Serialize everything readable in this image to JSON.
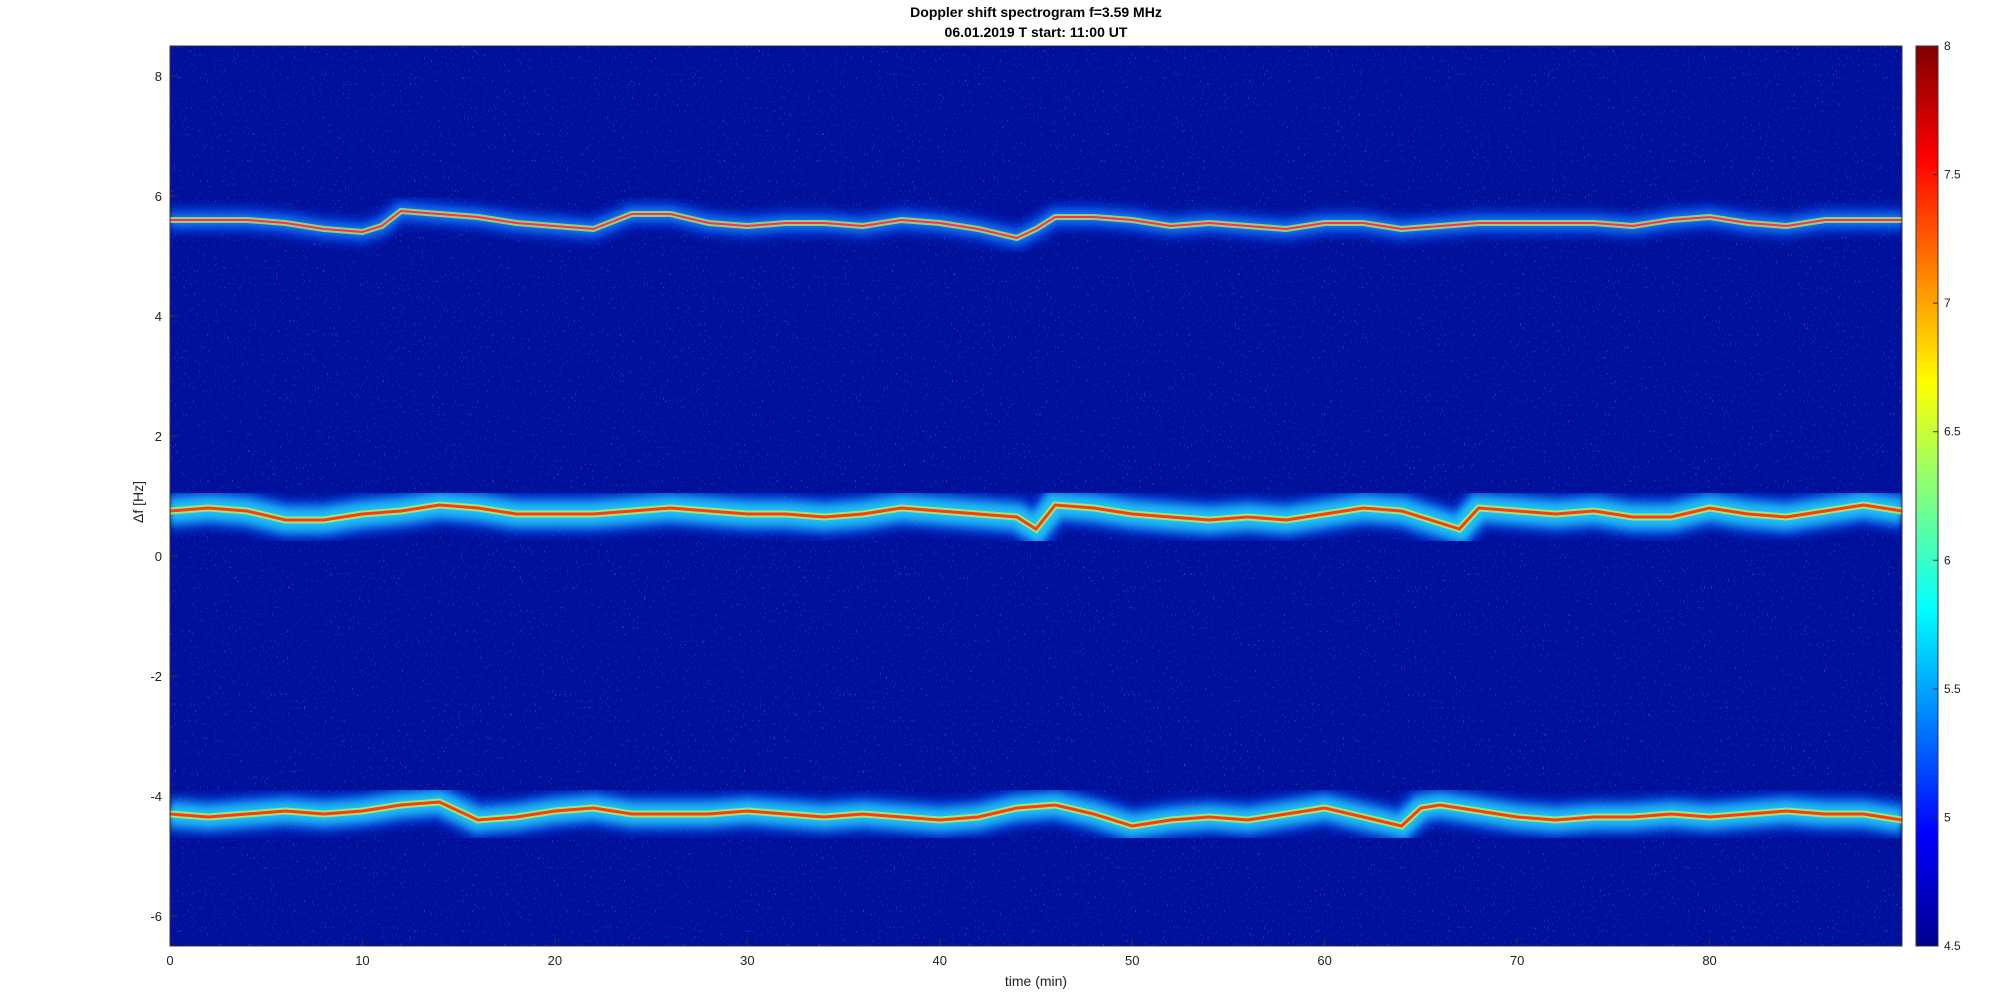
{
  "chart_data": {
    "type": "heatmap",
    "title": "Doppler shift spectrogram f=3.59 MHz",
    "subtitle": "06.01.2019   T start: 11:00 UT",
    "xlabel": "time (min)",
    "ylabel": "Δf [Hz]",
    "xlim": [
      0,
      90
    ],
    "ylim": [
      -6.5,
      8.5
    ],
    "xticks": [
      0,
      10,
      20,
      30,
      40,
      50,
      60,
      70,
      80
    ],
    "yticks": [
      -6,
      -4,
      -2,
      0,
      2,
      4,
      6,
      8
    ],
    "colormap": "jet",
    "colorbar": {
      "clim": [
        4.5,
        8
      ],
      "ticks": [
        4.5,
        5,
        5.5,
        6,
        6.5,
        7,
        7.5,
        8
      ]
    },
    "series": [
      {
        "t": [
          0,
          2,
          4,
          6,
          8,
          10,
          11,
          12,
          14,
          16,
          18,
          20,
          22,
          24,
          26,
          28,
          30,
          32,
          34,
          36,
          38,
          40,
          42,
          44,
          45,
          46,
          48,
          50,
          52,
          54,
          56,
          58,
          60,
          62,
          64,
          66,
          68,
          70,
          72,
          74,
          76,
          78,
          80,
          82,
          84,
          86,
          88,
          90
        ],
        "f": [
          5.6,
          5.6,
          5.6,
          5.55,
          5.45,
          5.4,
          5.5,
          5.75,
          5.7,
          5.65,
          5.55,
          5.5,
          5.45,
          5.7,
          5.7,
          5.55,
          5.5,
          5.55,
          5.55,
          5.5,
          5.6,
          5.55,
          5.45,
          5.3,
          5.45,
          5.65,
          5.65,
          5.6,
          5.5,
          5.55,
          5.5,
          5.45,
          5.55,
          5.55,
          5.45,
          5.5,
          5.55,
          5.55,
          5.55,
          5.55,
          5.5,
          5.6,
          5.65,
          5.55,
          5.5,
          5.6,
          5.6,
          5.6
        ]
      },
      {
        "t": [
          0,
          2,
          4,
          6,
          8,
          10,
          12,
          14,
          16,
          18,
          20,
          22,
          24,
          26,
          28,
          30,
          32,
          34,
          36,
          38,
          40,
          42,
          44,
          45,
          46,
          48,
          50,
          52,
          54,
          56,
          58,
          60,
          62,
          64,
          66,
          67,
          68,
          70,
          72,
          74,
          76,
          78,
          80,
          82,
          84,
          86,
          88,
          90
        ],
        "f": [
          0.75,
          0.8,
          0.75,
          0.6,
          0.6,
          0.7,
          0.75,
          0.85,
          0.8,
          0.7,
          0.7,
          0.7,
          0.75,
          0.8,
          0.75,
          0.7,
          0.7,
          0.65,
          0.7,
          0.8,
          0.75,
          0.7,
          0.65,
          0.45,
          0.85,
          0.8,
          0.7,
          0.65,
          0.6,
          0.65,
          0.6,
          0.7,
          0.8,
          0.75,
          0.55,
          0.45,
          0.8,
          0.75,
          0.7,
          0.75,
          0.65,
          0.65,
          0.8,
          0.7,
          0.65,
          0.75,
          0.85,
          0.75
        ]
      },
      {
        "t": [
          0,
          2,
          4,
          6,
          8,
          10,
          12,
          14,
          16,
          18,
          20,
          22,
          24,
          26,
          28,
          30,
          32,
          34,
          36,
          38,
          40,
          42,
          44,
          46,
          48,
          50,
          52,
          54,
          56,
          58,
          60,
          62,
          64,
          65,
          66,
          68,
          70,
          72,
          74,
          76,
          78,
          80,
          82,
          84,
          86,
          88,
          90
        ],
        "f": [
          -4.3,
          -4.35,
          -4.3,
          -4.25,
          -4.3,
          -4.25,
          -4.15,
          -4.1,
          -4.4,
          -4.35,
          -4.25,
          -4.2,
          -4.3,
          -4.3,
          -4.3,
          -4.25,
          -4.3,
          -4.35,
          -4.3,
          -4.35,
          -4.4,
          -4.35,
          -4.2,
          -4.15,
          -4.3,
          -4.5,
          -4.4,
          -4.35,
          -4.4,
          -4.3,
          -4.2,
          -4.35,
          -4.5,
          -4.2,
          -4.15,
          -4.25,
          -4.35,
          -4.4,
          -4.35,
          -4.35,
          -4.3,
          -4.35,
          -4.3,
          -4.25,
          -4.3,
          -4.3,
          -4.4
        ]
      }
    ]
  }
}
